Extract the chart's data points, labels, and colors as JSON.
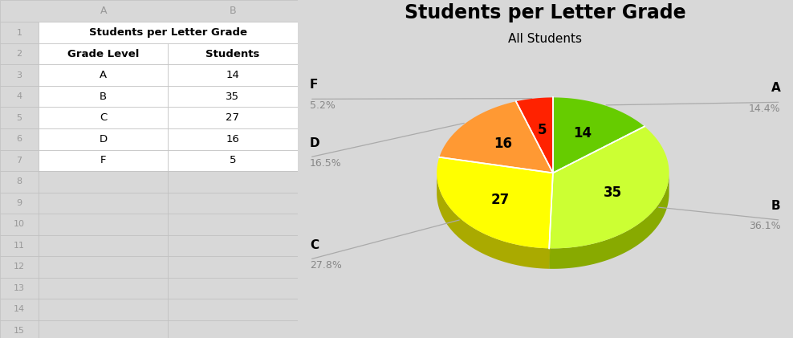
{
  "title": "Students per Letter Grade",
  "subtitle": "All Students",
  "grades": [
    "A",
    "B",
    "C",
    "D",
    "F"
  ],
  "values": [
    14,
    35,
    27,
    16,
    5
  ],
  "percentages": [
    "14.4%",
    "36.1%",
    "27.8%",
    "16.5%",
    "5.2%"
  ],
  "colors": [
    "#66cc00",
    "#ccff33",
    "#ffff00",
    "#ff9933",
    "#ff2200"
  ],
  "shadow_colors": [
    "#3d7a00",
    "#88aa00",
    "#aaaa00",
    "#cc6600",
    "#aa1100"
  ],
  "table_header_merged": "Students per Letter Grade",
  "col_headers": [
    "Grade Level",
    "Students"
  ],
  "table_data": [
    [
      "A",
      "14"
    ],
    [
      "B",
      "35"
    ],
    [
      "C",
      "27"
    ],
    [
      "D",
      "16"
    ],
    [
      "F",
      "5"
    ]
  ],
  "spreadsheet_bg": "#d8d8d8",
  "white": "#ffffff",
  "grid_color": "#c0c0c0",
  "row_num_color": "#999999",
  "col_letter_color": "#999999",
  "label_color": "#888888",
  "title_fontsize": 17,
  "subtitle_fontsize": 11,
  "value_fontsize": 12,
  "label_fontsize": 11,
  "pct_fontsize": 9,
  "label_positions": [
    [
      "A",
      "14.4%",
      "right",
      0.5
    ],
    [
      "B",
      "36.1%",
      "right",
      -0.25
    ],
    [
      "C",
      "27.8%",
      "left",
      -0.5
    ],
    [
      "D",
      "16.5%",
      "left",
      0.15
    ],
    [
      "F",
      "5.2%",
      "left",
      0.52
    ]
  ]
}
